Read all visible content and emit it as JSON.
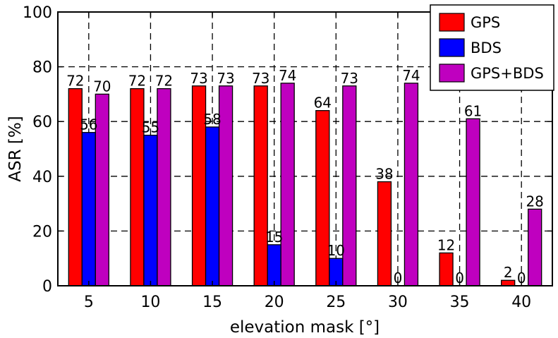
{
  "chart_data": {
    "type": "bar",
    "xlabel": "elevation mask [°]",
    "ylabel": "ASR [%]",
    "ylim": [
      0,
      100
    ],
    "yticks": [
      0,
      20,
      40,
      60,
      80,
      100
    ],
    "categories": [
      "5",
      "10",
      "15",
      "20",
      "25",
      "30",
      "35",
      "40"
    ],
    "grid": true,
    "legend_position": "top-right",
    "series": [
      {
        "name": "GPS",
        "color": "#ff0000",
        "values": [
          72,
          72,
          73,
          73,
          64,
          38,
          12,
          2
        ]
      },
      {
        "name": "BDS",
        "color": "#0000ff",
        "values": [
          56,
          55,
          58,
          15,
          10,
          0,
          0,
          0
        ]
      },
      {
        "name": "GPS+BDS",
        "color": "#bf00bf",
        "values": [
          70,
          72,
          73,
          74,
          73,
          74,
          61,
          28
        ]
      }
    ]
  }
}
